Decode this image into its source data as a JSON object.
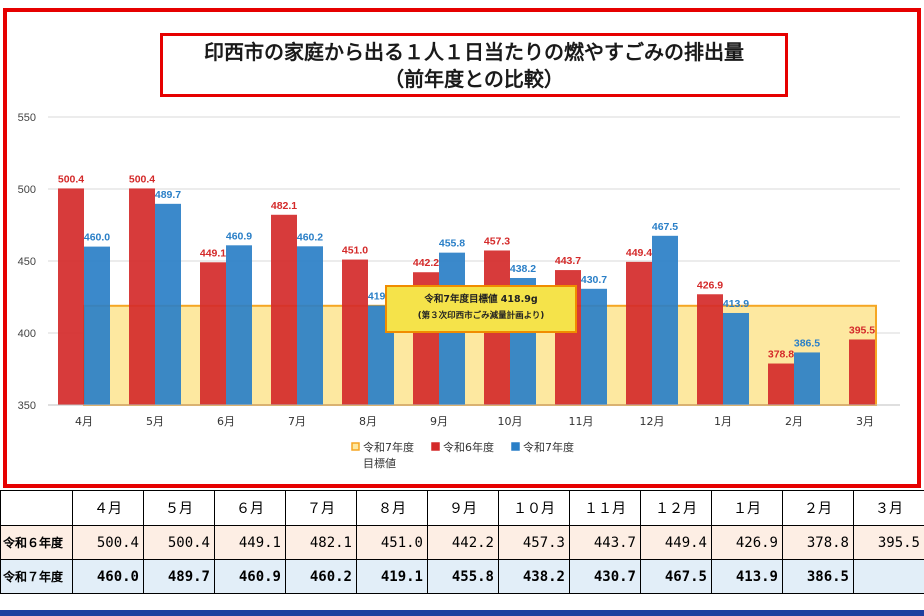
{
  "title": {
    "line1": "印西市の家庭から出る１人１日当たりの燃やすごみの排出量",
    "line2": "（前年度との比較）"
  },
  "chart_data": {
    "type": "bar",
    "categories": [
      "4月",
      "5月",
      "6月",
      "7月",
      "8月",
      "9月",
      "10月",
      "11月",
      "12月",
      "1月",
      "2月",
      "3月"
    ],
    "series": [
      {
        "name": "令和6年度",
        "color": "#d42a2a",
        "values": [
          500.4,
          500.4,
          449.1,
          482.1,
          451.0,
          442.2,
          457.3,
          443.7,
          449.4,
          426.9,
          378.8,
          395.5
        ]
      },
      {
        "name": "令和7年度",
        "color": "#2a7fc7",
        "values": [
          460.0,
          489.7,
          460.9,
          460.2,
          419.1,
          455.8,
          438.2,
          430.7,
          467.5,
          413.9,
          386.5,
          null
        ]
      }
    ],
    "target": {
      "name": "令和7年度目標値",
      "value": 418.9,
      "fill": "#fde8a0",
      "stroke": "#f5a623"
    },
    "ylim": [
      350,
      550
    ],
    "yticks": [
      350,
      400,
      450,
      500,
      550
    ],
    "annotation": {
      "line1": "令和7年度目標値 418.9g",
      "line2": "(第３次印西市ごみ減量計画より)"
    },
    "legend_placement": "bottom"
  },
  "table": {
    "months": [
      "４月",
      "５月",
      "６月",
      "７月",
      "８月",
      "９月",
      "１０月",
      "１１月",
      "１２月",
      "１月",
      "２月",
      "３月"
    ],
    "row6_label": "令和６年度",
    "row6": [
      "500.4",
      "500.4",
      "449.1",
      "482.1",
      "451.0",
      "442.2",
      "457.3",
      "443.7",
      "449.4",
      "426.9",
      "378.8",
      "395.5"
    ],
    "row7_label": "令和７年度",
    "row7": [
      "460.0",
      "489.7",
      "460.9",
      "460.2",
      "419.1",
      "455.8",
      "438.2",
      "430.7",
      "467.5",
      "413.9",
      "386.5",
      ""
    ]
  }
}
